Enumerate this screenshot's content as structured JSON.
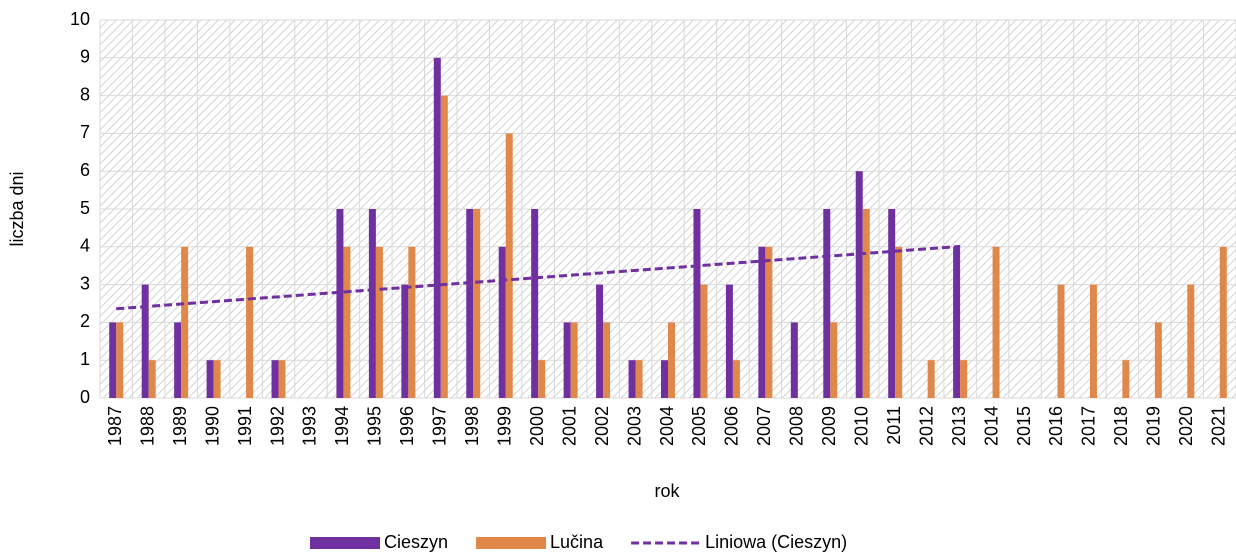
{
  "chart_data": {
    "type": "bar",
    "x_label": "rok",
    "y_label": "liczba dni",
    "categories": [
      "1987",
      "1988",
      "1989",
      "1990",
      "1991",
      "1992",
      "1993",
      "1994",
      "1995",
      "1996",
      "1997",
      "1998",
      "1999",
      "2000",
      "2001",
      "2002",
      "2003",
      "2004",
      "2005",
      "2006",
      "2007",
      "2008",
      "2009",
      "2010",
      "2011",
      "2012",
      "2013",
      "2014",
      "2015",
      "2016",
      "2017",
      "2018",
      "2019",
      "2020",
      "2021"
    ],
    "series": [
      {
        "name": "Cieszyn",
        "color": "#7030a0",
        "values": [
          2,
          3,
          2,
          1,
          0,
          1,
          0,
          5,
          5,
          3,
          9,
          5,
          4,
          5,
          2,
          3,
          1,
          1,
          5,
          3,
          4,
          2,
          5,
          6,
          5,
          0,
          4,
          null,
          null,
          null,
          null,
          null,
          null,
          null,
          null
        ]
      },
      {
        "name": "Lučina",
        "color": "#e0884a",
        "values": [
          2,
          1,
          4,
          1,
          4,
          1,
          0,
          4,
          4,
          4,
          8,
          5,
          7,
          1,
          2,
          2,
          1,
          2,
          3,
          1,
          4,
          0,
          2,
          5,
          4,
          1,
          1,
          4,
          0,
          3,
          3,
          1,
          2,
          3,
          4
        ]
      }
    ],
    "trendline": {
      "name": "Liniowa (Cieszyn)",
      "series": 0,
      "color": "#7030a0",
      "type": "linear"
    },
    "ylim": [
      0,
      10
    ],
    "yticks": [
      0,
      1,
      2,
      3,
      4,
      5,
      6,
      7,
      8,
      9,
      10
    ],
    "grid": true,
    "legend": "bottom"
  }
}
